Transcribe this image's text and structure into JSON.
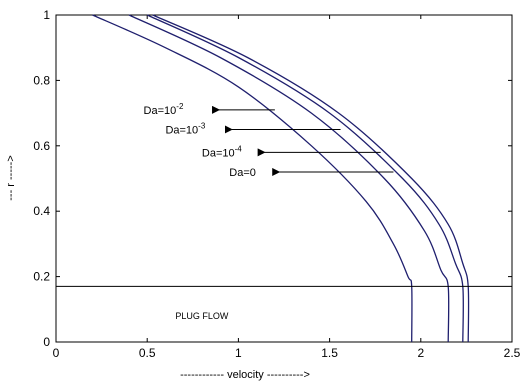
{
  "chart_data": {
    "type": "line",
    "title": "",
    "xlabel": "------------  velocity ---------->",
    "ylabel": "---  r ----->",
    "xlim": [
      0,
      2.5
    ],
    "ylim": [
      0,
      1
    ],
    "grid": false,
    "x_ticks": [
      {
        "value": 0,
        "label": "0"
      },
      {
        "value": 0.5,
        "label": "0.5"
      },
      {
        "value": 1,
        "label": "1"
      },
      {
        "value": 1.5,
        "label": "1.5"
      },
      {
        "value": 2,
        "label": "2"
      },
      {
        "value": 2.5,
        "label": "2.5"
      }
    ],
    "y_ticks": [
      {
        "value": 0,
        "label": "0"
      },
      {
        "value": 0.2,
        "label": "0.2"
      },
      {
        "value": 0.4,
        "label": "0.4"
      },
      {
        "value": 0.6,
        "label": "0.6"
      },
      {
        "value": 0.8,
        "label": "0.8"
      },
      {
        "value": 1,
        "label": "1"
      }
    ],
    "series": [
      {
        "name": "Da=10-2",
        "color": "#1f1f6e",
        "x": [
          0.2,
          0.6,
          1.0,
          1.4,
          1.7,
          1.85,
          1.93,
          1.95,
          1.95
        ],
        "y": [
          1.0,
          0.9,
          0.78,
          0.6,
          0.43,
          0.3,
          0.2,
          0.17,
          0.0
        ]
      },
      {
        "name": "Da=10-3",
        "color": "#1f1f6e",
        "x": [
          0.4,
          0.9,
          1.4,
          1.8,
          2.02,
          2.11,
          2.15,
          2.15
        ],
        "y": [
          1.0,
          0.87,
          0.7,
          0.5,
          0.34,
          0.22,
          0.17,
          0.0
        ]
      },
      {
        "name": "Da=10-4",
        "color": "#1f1f6e",
        "x": [
          0.5,
          1.0,
          1.5,
          1.9,
          2.1,
          2.19,
          2.23,
          2.23
        ],
        "y": [
          1.0,
          0.87,
          0.7,
          0.5,
          0.36,
          0.24,
          0.17,
          0.0
        ]
      },
      {
        "name": "Da=0",
        "color": "#1f1f6e",
        "x": [
          0.53,
          1.05,
          1.55,
          1.95,
          2.15,
          2.23,
          2.26,
          2.26
        ],
        "y": [
          1.0,
          0.87,
          0.7,
          0.5,
          0.36,
          0.24,
          0.17,
          0.0
        ]
      }
    ],
    "reference_line": {
      "y": 0.17,
      "label": "PLUG   FLOW",
      "label_x": 0.8,
      "label_y": 0.07
    },
    "annotations": [
      {
        "base": "Da=10",
        "exp": "-2",
        "text_at": [
          0.48,
          0.71
        ],
        "arrow_from": [
          0.85,
          0.71
        ],
        "arrow_to": [
          1.2,
          0.71
        ]
      },
      {
        "base": "Da=10",
        "exp": "-3",
        "text_at": [
          0.6,
          0.65
        ],
        "arrow_from": [
          0.92,
          0.65
        ],
        "arrow_to": [
          1.56,
          0.65
        ]
      },
      {
        "base": "Da=10",
        "exp": "-4",
        "text_at": [
          0.8,
          0.58
        ],
        "arrow_from": [
          1.1,
          0.58
        ],
        "arrow_to": [
          1.78,
          0.58
        ]
      },
      {
        "base": "Da=0",
        "exp": "",
        "text_at": [
          0.95,
          0.52
        ],
        "arrow_from": [
          1.18,
          0.52
        ],
        "arrow_to": [
          1.85,
          0.52
        ]
      }
    ]
  }
}
